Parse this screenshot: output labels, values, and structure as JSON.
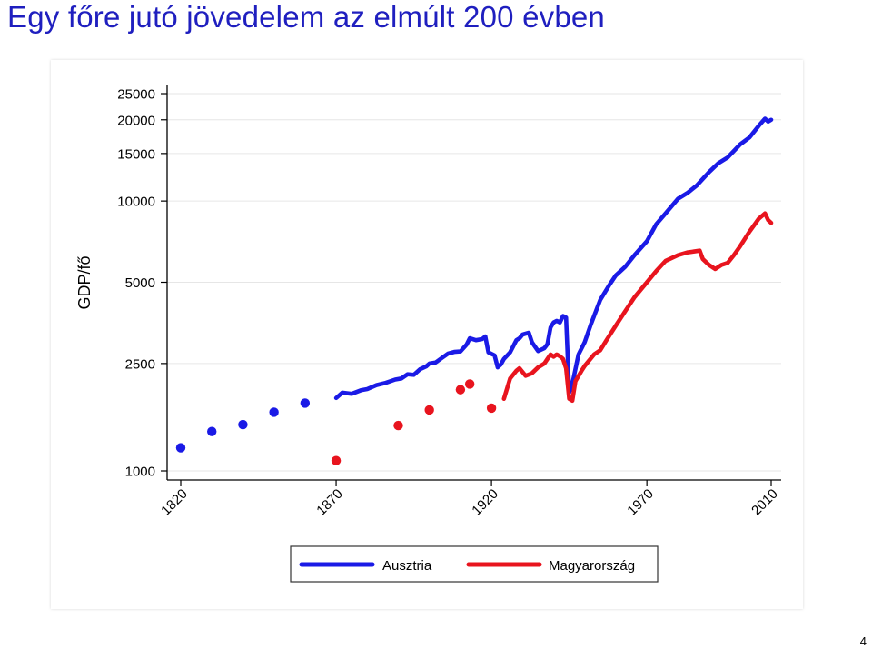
{
  "slide": {
    "title": "Egy főre jutó jövedelem az elmúlt 200 évben",
    "page_number": "4"
  },
  "colors": {
    "austria": "#1a1ae6",
    "hungary": "#e8141e",
    "title": "#1f1fbf"
  },
  "chart_data": {
    "type": "line",
    "title": "",
    "xlabel": "",
    "ylabel": "GDP/fő",
    "yscale": "log",
    "xlim": [
      1820,
      2010
    ],
    "ylim": [
      1000,
      25000
    ],
    "x_ticks": [
      1820,
      1870,
      1920,
      1970,
      2010
    ],
    "x_tick_labels": [
      "1820",
      "1870",
      "1920",
      "1970",
      "2010"
    ],
    "y_ticks": [
      1000,
      2500,
      5000,
      10000,
      15000,
      20000,
      25000
    ],
    "y_tick_labels": [
      "1000",
      "2500",
      "5000",
      "10000",
      "15000",
      "20000",
      "25000"
    ],
    "legend": {
      "position": "bottom",
      "entries": [
        "Ausztria",
        "Magyarország"
      ]
    },
    "series": [
      {
        "name": "Ausztria",
        "color": "#1a1ae6",
        "points": [
          [
            1820,
            1218
          ],
          [
            1830,
            1399
          ],
          [
            1840,
            1485
          ],
          [
            1850,
            1650
          ],
          [
            1860,
            1783
          ]
        ],
        "line": [
          [
            1870,
            1863
          ],
          [
            1872,
            1950
          ],
          [
            1875,
            1930
          ],
          [
            1878,
            1990
          ],
          [
            1880,
            2010
          ],
          [
            1883,
            2080
          ],
          [
            1886,
            2120
          ],
          [
            1889,
            2180
          ],
          [
            1891,
            2200
          ],
          [
            1893,
            2280
          ],
          [
            1895,
            2270
          ],
          [
            1897,
            2380
          ],
          [
            1899,
            2440
          ],
          [
            1900,
            2500
          ],
          [
            1902,
            2520
          ],
          [
            1904,
            2620
          ],
          [
            1906,
            2720
          ],
          [
            1908,
            2760
          ],
          [
            1910,
            2770
          ],
          [
            1912,
            2940
          ],
          [
            1913,
            3100
          ],
          [
            1915,
            3050
          ],
          [
            1917,
            3080
          ],
          [
            1918,
            3150
          ],
          [
            1919,
            2750
          ],
          [
            1921,
            2680
          ],
          [
            1922,
            2420
          ],
          [
            1923,
            2480
          ],
          [
            1924,
            2600
          ],
          [
            1926,
            2750
          ],
          [
            1928,
            3050
          ],
          [
            1929,
            3100
          ],
          [
            1930,
            3200
          ],
          [
            1932,
            3250
          ],
          [
            1933,
            3000
          ],
          [
            1935,
            2780
          ],
          [
            1937,
            2850
          ],
          [
            1938,
            2950
          ],
          [
            1939,
            3400
          ],
          [
            1940,
            3550
          ],
          [
            1941,
            3600
          ],
          [
            1942,
            3550
          ],
          [
            1943,
            3750
          ],
          [
            1944,
            3700
          ],
          [
            1945,
            1950
          ],
          [
            1946,
            2100
          ],
          [
            1948,
            2700
          ],
          [
            1950,
            3000
          ],
          [
            1952,
            3500
          ],
          [
            1955,
            4300
          ],
          [
            1958,
            4900
          ],
          [
            1960,
            5300
          ],
          [
            1963,
            5700
          ],
          [
            1966,
            6300
          ],
          [
            1970,
            7100
          ],
          [
            1973,
            8200
          ],
          [
            1976,
            9000
          ],
          [
            1980,
            10200
          ],
          [
            1983,
            10700
          ],
          [
            1986,
            11400
          ],
          [
            1990,
            12800
          ],
          [
            1993,
            13800
          ],
          [
            1996,
            14500
          ],
          [
            2000,
            16200
          ],
          [
            2003,
            17200
          ],
          [
            2006,
            19000
          ],
          [
            2008,
            20200
          ],
          [
            2009,
            19700
          ],
          [
            2010,
            20000
          ]
        ]
      },
      {
        "name": "Magyarország",
        "color": "#e8141e",
        "points": [
          [
            1870,
            1092
          ],
          [
            1890,
            1473
          ],
          [
            1900,
            1682
          ],
          [
            1910,
            2000
          ],
          [
            1913,
            2098
          ],
          [
            1920,
            1709
          ]
        ],
        "line": [
          [
            1924,
            1850
          ],
          [
            1926,
            2200
          ],
          [
            1928,
            2350
          ],
          [
            1929,
            2400
          ],
          [
            1931,
            2250
          ],
          [
            1933,
            2300
          ],
          [
            1935,
            2420
          ],
          [
            1937,
            2500
          ],
          [
            1938,
            2600
          ],
          [
            1939,
            2700
          ],
          [
            1940,
            2650
          ],
          [
            1941,
            2700
          ],
          [
            1942,
            2660
          ],
          [
            1943,
            2600
          ],
          [
            1944,
            2400
          ],
          [
            1945,
            1850
          ],
          [
            1946,
            1820
          ],
          [
            1947,
            2150
          ],
          [
            1949,
            2350
          ],
          [
            1950,
            2450
          ],
          [
            1953,
            2700
          ],
          [
            1955,
            2800
          ],
          [
            1957,
            3050
          ],
          [
            1960,
            3450
          ],
          [
            1963,
            3900
          ],
          [
            1966,
            4400
          ],
          [
            1970,
            5000
          ],
          [
            1973,
            5500
          ],
          [
            1976,
            6000
          ],
          [
            1980,
            6300
          ],
          [
            1983,
            6450
          ],
          [
            1985,
            6500
          ],
          [
            1987,
            6550
          ],
          [
            1988,
            6100
          ],
          [
            1990,
            5800
          ],
          [
            1992,
            5600
          ],
          [
            1994,
            5800
          ],
          [
            1996,
            5900
          ],
          [
            1998,
            6300
          ],
          [
            2000,
            6800
          ],
          [
            2003,
            7700
          ],
          [
            2006,
            8600
          ],
          [
            2008,
            9000
          ],
          [
            2009,
            8500
          ],
          [
            2010,
            8300
          ]
        ]
      }
    ]
  }
}
